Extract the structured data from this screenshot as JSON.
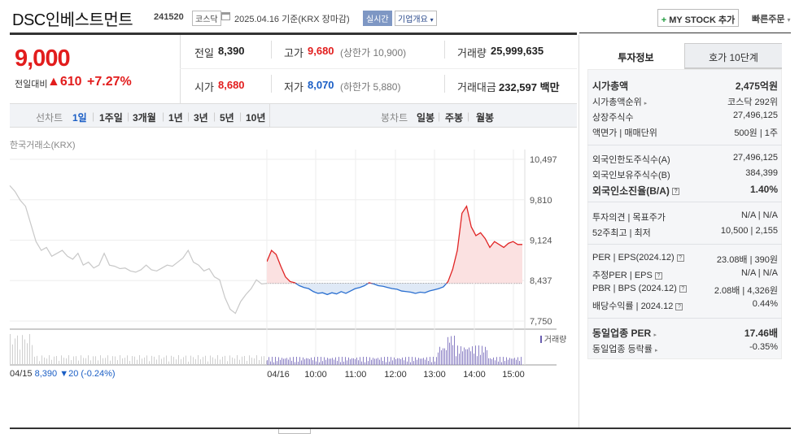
{
  "header": {
    "title": "DSC인베스트먼트",
    "code": "241520",
    "market_tag": "코스닥",
    "date_text": "2025.04.16  기준(KRX 장마감)",
    "live_tag": "실시간",
    "company_info_tag": "기업개요",
    "my_stock_button": "MY STOCK 추가",
    "quick_order": "빠른주문"
  },
  "quote": {
    "price": "9,000",
    "change_label": "전일대비",
    "change_value": "▲610",
    "change_pct": "+7.27%",
    "prev_close_label": "전일",
    "prev_close": "8,390",
    "open_label": "시가",
    "open": "8,680",
    "high_label": "고가",
    "high": "9,680",
    "upper_limit": "(상한가 10,900)",
    "low_label": "저가",
    "low": "8,070",
    "lower_limit": "(하한가 5,880)",
    "volume_label": "거래량",
    "volume": "25,999,635",
    "amount_label": "거래대금",
    "amount": "232,597 백만"
  },
  "chart_tabs": {
    "line_label": "선차트",
    "periods": [
      "1일",
      "1주일",
      "3개월",
      "1년",
      "3년",
      "5년",
      "10년"
    ],
    "selected": "1일",
    "candle_label": "봉차트",
    "candles": [
      "일봉",
      "주봉",
      "월봉"
    ]
  },
  "source_label": "한국거래소(KRX)",
  "chart_data": {
    "type": "line",
    "y_ticks": [
      "10,497",
      "9,810",
      "9,124",
      "8,437",
      "7,750"
    ],
    "ylim": [
      7750,
      10497
    ],
    "baseline": 8390,
    "x_ticks": [
      "04/16",
      "10:00",
      "11:00",
      "12:00",
      "13:00",
      "14:00",
      "15:00"
    ],
    "volume_legend": "거래량",
    "prev_day_summary": {
      "date": "04/15",
      "close": "8,390",
      "change": "▼20 (-0.24%)"
    },
    "prev_day": [
      10050,
      9950,
      9800,
      9700,
      9400,
      9100,
      8950,
      9000,
      8850,
      8900,
      8950,
      8850,
      8800,
      8900,
      8700,
      8750,
      8650,
      8700,
      8900,
      8700,
      8680,
      8640,
      8650,
      8600,
      8580,
      8620,
      8700,
      8620,
      8600,
      8650,
      8700,
      8680,
      8750,
      8820,
      8950,
      8750,
      8700,
      8600,
      8640,
      8500,
      8450,
      8150,
      7950,
      7880,
      8080,
      8200,
      8300,
      8450,
      8380,
      8390
    ],
    "today": [
      8760,
      8950,
      8880,
      8680,
      8500,
      8420,
      8400,
      8350,
      8320,
      8300,
      8250,
      8220,
      8230,
      8200,
      8230,
      8210,
      8250,
      8220,
      8260,
      8300,
      8320,
      8350,
      8400,
      8380,
      8350,
      8340,
      8320,
      8300,
      8290,
      8260,
      8250,
      8240,
      8220,
      8240,
      8230,
      8260,
      8280,
      8300,
      8330,
      8420,
      8630,
      8950,
      9580,
      9700,
      9350,
      9200,
      9250,
      9150,
      9000,
      9100,
      9050,
      9000,
      9070,
      9100,
      9050,
      9050
    ]
  },
  "side_tabs": [
    "투자정보",
    "호가 10단계"
  ],
  "invest_info": {
    "market_cap_label": "시가총액",
    "market_cap": "2,475억원",
    "market_cap_rank_label": "시가총액순위",
    "market_cap_rank": "코스닥 292위",
    "shares_label": "상장주식수",
    "shares": "27,496,125",
    "par_label": "액면가 | 매매단위",
    "par": "500원 | 1주",
    "foreign_limit_label": "외국인한도주식수(A)",
    "foreign_limit": "27,496,125",
    "foreign_hold_label": "외국인보유주식수(B)",
    "foreign_hold": "384,399",
    "foreign_ratio_label": "외국인소진율(B/A)",
    "foreign_ratio": "1.40%",
    "opinion_label": "투자의견 | 목표주가",
    "opinion": "N/A | N/A",
    "week52_label": "52주최고 | 최저",
    "week52": "10,500 | 2,155",
    "per_label": "PER | EPS(2024.12)",
    "per": "23.08배 | 390원",
    "est_per_label": "추정PER | EPS",
    "est_per": "N/A | N/A",
    "pbr_label": "PBR | BPS (2024.12)",
    "pbr": "2.08배 | 4,326원",
    "div_label": "배당수익률 | 2024.12",
    "div": "0.44%",
    "sector_per_label": "동일업종 PER",
    "sector_per": "17.46배",
    "sector_chg_label": "동일업종 등락률",
    "sector_chg": "-0.35%"
  }
}
